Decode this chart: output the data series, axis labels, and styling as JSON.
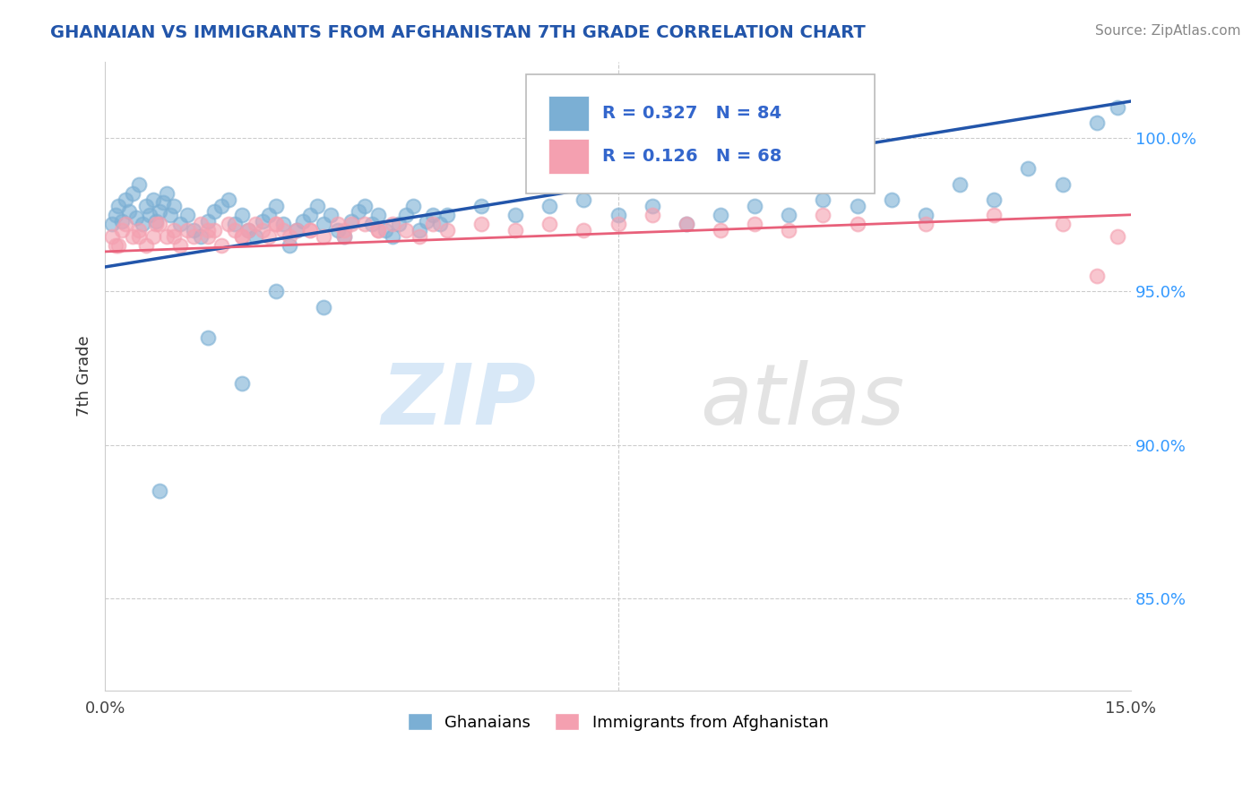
{
  "title": "GHANAIAN VS IMMIGRANTS FROM AFGHANISTAN 7TH GRADE CORRELATION CHART",
  "source": "Source: ZipAtlas.com",
  "ylabel_label": "7th Grade",
  "xmin": 0.0,
  "xmax": 15.0,
  "ymin": 82.0,
  "ymax": 102.5,
  "blue_R": 0.327,
  "blue_N": 84,
  "pink_R": 0.126,
  "pink_N": 68,
  "blue_color": "#7BAFD4",
  "pink_color": "#F4A0B0",
  "blue_line_color": "#2255AA",
  "pink_line_color": "#E8607A",
  "title_color": "#2255AA",
  "legend_label_blue": "Ghanaians",
  "legend_label_pink": "Immigrants from Afghanistan",
  "blue_line_y0": 95.8,
  "blue_line_y1": 101.2,
  "pink_line_y0": 96.3,
  "pink_line_y1": 97.5,
  "blue_scatter_x": [
    0.1,
    0.15,
    0.2,
    0.25,
    0.3,
    0.35,
    0.4,
    0.45,
    0.5,
    0.55,
    0.6,
    0.65,
    0.7,
    0.75,
    0.8,
    0.85,
    0.9,
    0.95,
    1.0,
    1.1,
    1.2,
    1.3,
    1.4,
    1.5,
    1.6,
    1.7,
    1.8,
    1.9,
    2.0,
    2.1,
    2.2,
    2.3,
    2.4,
    2.5,
    2.6,
    2.7,
    2.8,
    2.9,
    3.0,
    3.1,
    3.2,
    3.3,
    3.4,
    3.5,
    3.6,
    3.7,
    3.8,
    3.9,
    4.0,
    4.1,
    4.2,
    4.3,
    4.4,
    4.5,
    4.6,
    4.7,
    4.8,
    4.9,
    5.0,
    5.5,
    6.0,
    6.5,
    7.0,
    7.5,
    8.0,
    8.5,
    9.0,
    9.5,
    10.0,
    10.5,
    11.0,
    11.5,
    12.0,
    12.5,
    13.0,
    13.5,
    14.0,
    14.5,
    14.8,
    2.5,
    3.2,
    1.5,
    2.0,
    0.8
  ],
  "blue_scatter_y": [
    97.2,
    97.5,
    97.8,
    97.3,
    98.0,
    97.6,
    98.2,
    97.4,
    98.5,
    97.2,
    97.8,
    97.5,
    98.0,
    97.3,
    97.6,
    97.9,
    98.2,
    97.5,
    97.8,
    97.2,
    97.5,
    97.0,
    96.8,
    97.3,
    97.6,
    97.8,
    98.0,
    97.2,
    97.5,
    97.0,
    96.8,
    97.3,
    97.5,
    97.8,
    97.2,
    96.5,
    97.0,
    97.3,
    97.5,
    97.8,
    97.2,
    97.5,
    97.0,
    96.8,
    97.3,
    97.6,
    97.8,
    97.2,
    97.5,
    97.0,
    96.8,
    97.2,
    97.5,
    97.8,
    97.0,
    97.3,
    97.5,
    97.2,
    97.5,
    97.8,
    97.5,
    97.8,
    98.0,
    97.5,
    97.8,
    97.2,
    97.5,
    97.8,
    97.5,
    98.0,
    97.8,
    98.0,
    97.5,
    98.5,
    98.0,
    99.0,
    98.5,
    100.5,
    101.0,
    95.0,
    94.5,
    93.5,
    92.0,
    88.5
  ],
  "pink_scatter_x": [
    0.1,
    0.2,
    0.3,
    0.4,
    0.5,
    0.6,
    0.7,
    0.8,
    0.9,
    1.0,
    1.1,
    1.2,
    1.3,
    1.4,
    1.5,
    1.6,
    1.7,
    1.8,
    1.9,
    2.0,
    2.1,
    2.2,
    2.3,
    2.4,
    2.5,
    2.6,
    2.7,
    2.8,
    3.0,
    3.2,
    3.4,
    3.5,
    3.6,
    3.8,
    4.0,
    4.2,
    4.4,
    4.6,
    4.8,
    5.0,
    5.5,
    6.0,
    6.5,
    7.0,
    7.5,
    8.0,
    8.5,
    9.0,
    9.5,
    10.0,
    10.5,
    11.0,
    12.0,
    13.0,
    14.0,
    14.5,
    14.8,
    0.15,
    0.25,
    0.5,
    0.75,
    1.0,
    1.5,
    2.0,
    2.5,
    3.0,
    3.5,
    4.0
  ],
  "pink_scatter_y": [
    96.8,
    96.5,
    97.2,
    96.8,
    97.0,
    96.5,
    96.8,
    97.2,
    96.8,
    97.0,
    96.5,
    97.0,
    96.8,
    97.2,
    96.8,
    97.0,
    96.5,
    97.2,
    97.0,
    96.8,
    97.0,
    97.2,
    97.0,
    96.8,
    97.2,
    97.0,
    96.8,
    97.0,
    97.0,
    96.8,
    97.2,
    97.0,
    97.2,
    97.2,
    97.0,
    97.2,
    97.0,
    96.8,
    97.2,
    97.0,
    97.2,
    97.0,
    97.2,
    97.0,
    97.2,
    97.5,
    97.2,
    97.0,
    97.2,
    97.0,
    97.5,
    97.2,
    97.2,
    97.5,
    97.2,
    95.5,
    96.8,
    96.5,
    97.0,
    96.8,
    97.2,
    96.8,
    97.0,
    96.8,
    97.2,
    97.0,
    96.8,
    97.0
  ]
}
